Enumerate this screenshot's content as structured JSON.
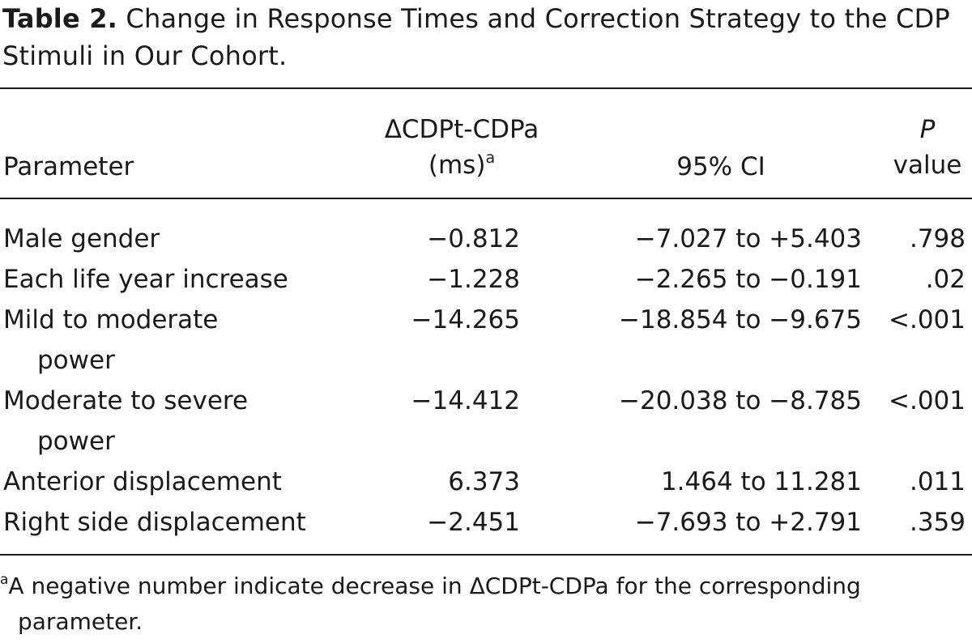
{
  "caption": {
    "label": "Table 2.",
    "title": "Change in Response Times and Correction Strategy to the CDP Stimuli in Our Cohort."
  },
  "headers": {
    "parameter": "Parameter",
    "delta_line1": "ΔCDPt-CDPa",
    "delta_line2": "(ms)",
    "delta_sup": "a",
    "ci": "95% CI",
    "p_line1": "P",
    "p_line2": "value"
  },
  "rows": [
    {
      "parameter": "Male gender",
      "parameter_cont": "",
      "delta": "−0.812",
      "ci": "−7.027 to +5.403",
      "p": ".798"
    },
    {
      "parameter": "Each life year increase",
      "parameter_cont": "",
      "delta": "−1.228",
      "ci": "−2.265 to −0.191",
      "p": ".02"
    },
    {
      "parameter": "Mild to moderate",
      "parameter_cont": "power",
      "delta": "−14.265",
      "ci": "−18.854 to −9.675",
      "p": "<.001"
    },
    {
      "parameter": "Moderate to severe",
      "parameter_cont": "power",
      "delta": "−14.412",
      "ci": "−20.038 to −8.785",
      "p": "<.001"
    },
    {
      "parameter": "Anterior displacement",
      "parameter_cont": "",
      "delta": "6.373",
      "ci": "1.464 to 11.281",
      "p": ".011"
    },
    {
      "parameter": "Right side displacement",
      "parameter_cont": "",
      "delta": "−2.451",
      "ci": "−7.693 to +2.791",
      "p": ".359"
    }
  ],
  "footnote": {
    "marker": "a",
    "line1": "A negative number indicate decrease in ΔCDPt-CDPa for the corresponding",
    "line2": "parameter."
  }
}
